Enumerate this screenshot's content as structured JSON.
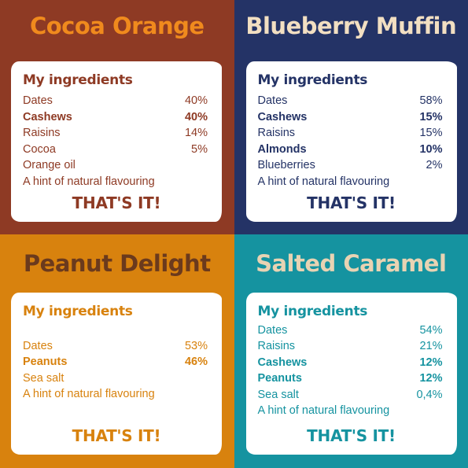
{
  "colors": {
    "cocoa_orange_bg": "#8e3a24",
    "cocoa_orange_title": "#f08a1d",
    "blueberry_muffin_bg": "#243366",
    "blueberry_muffin_title": "#f2dfc2",
    "peanut_delight_bg": "#d8820e",
    "peanut_delight_title": "#6b3a1d",
    "salted_caramel_bg": "#1593a0",
    "salted_caramel_title": "#e8d3b3"
  },
  "panels": [
    {
      "title": "Cocoa Orange",
      "heading": "My ingredients",
      "ingredients": [
        {
          "name": "Dates",
          "pct": "40%",
          "bold": false
        },
        {
          "name": "Cashews",
          "pct": "40%",
          "bold": true
        },
        {
          "name": "Raisins",
          "pct": "14%",
          "bold": false
        },
        {
          "name": "Cocoa",
          "pct": "5%",
          "bold": false
        },
        {
          "name": "Orange oil",
          "pct": "",
          "bold": false
        },
        {
          "name": "A hint of natural flavouring",
          "pct": "",
          "bold": false
        }
      ],
      "tagline": "THAT'S IT!"
    },
    {
      "title": "Blueberry Muffin",
      "heading": "My ingredients",
      "ingredients": [
        {
          "name": "Dates",
          "pct": "58%",
          "bold": false
        },
        {
          "name": "Cashews",
          "pct": "15%",
          "bold": true
        },
        {
          "name": "Raisins",
          "pct": "15%",
          "bold": false
        },
        {
          "name": "Almonds",
          "pct": "10%",
          "bold": true
        },
        {
          "name": "Blueberries",
          "pct": "2%",
          "bold": false
        },
        {
          "name": "A hint of natural flavouring",
          "pct": "",
          "bold": false
        }
      ],
      "tagline": "THAT'S IT!"
    },
    {
      "title": "Peanut Delight",
      "heading": "My ingredients",
      "ingredients": [
        {
          "name": "Dates",
          "pct": "53%",
          "bold": false
        },
        {
          "name": "Peanuts",
          "pct": "46%",
          "bold": true
        },
        {
          "name": "Sea salt",
          "pct": "",
          "bold": false
        },
        {
          "name": "A hint of natural flavouring",
          "pct": "",
          "bold": false
        }
      ],
      "tagline": "THAT'S IT!"
    },
    {
      "title": "Salted Caramel",
      "heading": "My ingredients",
      "ingredients": [
        {
          "name": "Dates",
          "pct": "54%",
          "bold": false
        },
        {
          "name": "Raisins",
          "pct": "21%",
          "bold": false
        },
        {
          "name": "Cashews",
          "pct": "12%",
          "bold": true
        },
        {
          "name": "Peanuts",
          "pct": "12%",
          "bold": true
        },
        {
          "name": "Sea salt",
          "pct": "0,4%",
          "bold": false
        },
        {
          "name": "A hint of natural flavouring",
          "pct": "",
          "bold": false
        }
      ],
      "tagline": "THAT'S IT!"
    }
  ]
}
